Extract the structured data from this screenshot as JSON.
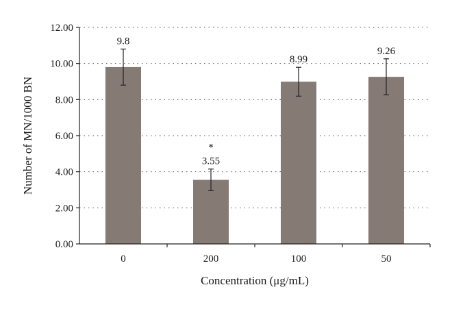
{
  "chart_data": {
    "type": "bar",
    "categories": [
      "0",
      "200",
      "100",
      "50"
    ],
    "values": [
      9.8,
      3.55,
      8.99,
      9.26
    ],
    "value_labels": [
      "9.8",
      "3.55",
      "8.99",
      "9.26"
    ],
    "error": [
      1.0,
      0.6,
      0.8,
      1.0
    ],
    "significance_marks": [
      "",
      "*",
      "",
      ""
    ],
    "xlabel": "Concentration (μg/mL)",
    "ylabel": "Number of MN/1000 BN",
    "ylim": [
      0,
      12
    ],
    "yticks": [
      0,
      2,
      4,
      6,
      8,
      10,
      12
    ],
    "ytick_labels": [
      "0.00",
      "2.00",
      "4.00",
      "6.00",
      "8.00",
      "10.00",
      "12.00"
    ],
    "grid": "horizontal-dotted",
    "bar_color": "#857a74"
  }
}
